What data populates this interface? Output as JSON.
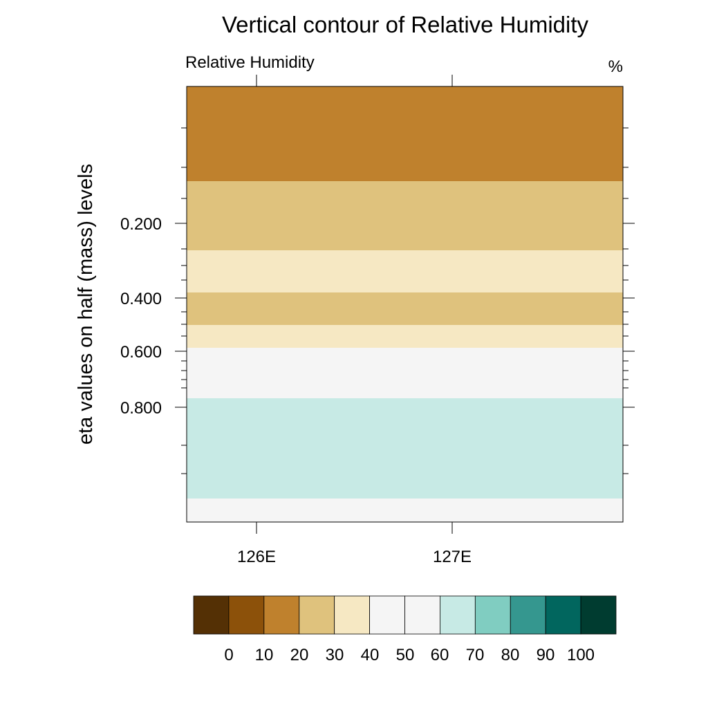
{
  "chart_data": {
    "type": "heatmap",
    "title": "Vertical contour of Relative Humidity",
    "left_label": "Relative Humidity",
    "units_label": "%",
    "ylabel": "eta values on half (mass) levels",
    "xlabel": "",
    "x_ticks": [
      "126E",
      "127E"
    ],
    "y_ticks": [
      "0.200",
      "0.400",
      "0.600",
      "0.800"
    ],
    "bands": [
      {
        "rh_bin": "20-30",
        "color": "#bf812d"
      },
      {
        "rh_bin": "30-40",
        "color": "#dfc27d"
      },
      {
        "rh_bin": "40-50",
        "color": "#f6e8c3"
      },
      {
        "rh_bin": "30-40",
        "color": "#dfc27d"
      },
      {
        "rh_bin": "40-50",
        "color": "#f6e8c3"
      },
      {
        "rh_bin": "50-60",
        "color": "#f5f5f5"
      },
      {
        "rh_bin": "60-70",
        "color": "#c7eae5"
      },
      {
        "rh_bin": "50-60",
        "color": "#f5f5f5"
      }
    ],
    "colorbar": {
      "colors": [
        "#543005",
        "#8c510a",
        "#bf812d",
        "#dfc27d",
        "#f6e8c3",
        "#f5f5f5",
        "#f5f5f5",
        "#c7eae5",
        "#80cdc1",
        "#35978f",
        "#01665e",
        "#003c30"
      ],
      "labels": [
        "0",
        "10",
        "20",
        "30",
        "40",
        "50",
        "60",
        "70",
        "80",
        "90",
        "100"
      ]
    }
  }
}
